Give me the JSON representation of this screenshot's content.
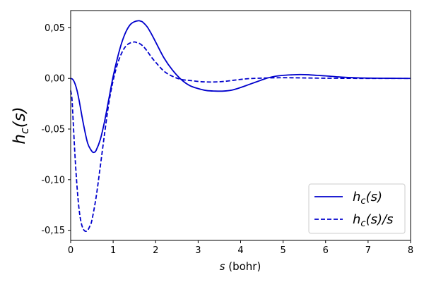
{
  "chart_data": {
    "type": "line",
    "title": "",
    "xlabel": {
      "var": "s",
      "unit": " (bohr)"
    },
    "ylabel": {
      "base": "h",
      "sub": "c",
      "rest": "(s)"
    },
    "xlim": [
      0,
      8
    ],
    "ylim": [
      -0.16,
      0.067
    ],
    "x_ticks": [
      0,
      1,
      2,
      3,
      4,
      5,
      6,
      7,
      8
    ],
    "x_tick_labels": [
      "0",
      "1",
      "2",
      "3",
      "4",
      "5",
      "6",
      "7",
      "8"
    ],
    "y_ticks": [
      0.05,
      0.0,
      -0.05,
      -0.1,
      -0.15
    ],
    "y_tick_labels": [
      "0,05",
      "0,00",
      "-0,05",
      "-0,10",
      "-0,15"
    ],
    "grid": false,
    "legend_position": "lower-right",
    "line_color": "#0000cc",
    "series": [
      {
        "name": {
          "base": "h",
          "sub": "c",
          "rest": "(s)"
        },
        "style": "solid",
        "x": [
          0,
          0.05,
          0.1,
          0.15,
          0.2,
          0.3,
          0.4,
          0.5,
          0.55,
          0.6,
          0.7,
          0.8,
          0.9,
          1.0,
          1.1,
          1.2,
          1.3,
          1.4,
          1.5,
          1.6,
          1.65,
          1.7,
          1.8,
          1.9,
          2.0,
          2.2,
          2.4,
          2.6,
          2.8,
          3.0,
          3.2,
          3.4,
          3.6,
          3.8,
          4.0,
          4.2,
          4.4,
          4.6,
          4.8,
          5.0,
          5.2,
          5.4,
          5.6,
          5.8,
          6.0,
          6.3,
          6.6,
          7.0,
          7.5,
          8.0
        ],
        "y": [
          0.0,
          -0.001,
          -0.005,
          -0.012,
          -0.022,
          -0.045,
          -0.064,
          -0.072,
          -0.073,
          -0.071,
          -0.06,
          -0.042,
          -0.02,
          0.002,
          0.02,
          0.035,
          0.046,
          0.053,
          0.056,
          0.057,
          0.0565,
          0.0555,
          0.051,
          0.044,
          0.036,
          0.02,
          0.008,
          -0.001,
          -0.007,
          -0.01,
          -0.012,
          -0.0125,
          -0.0125,
          -0.0115,
          -0.009,
          -0.006,
          -0.003,
          0.0,
          0.002,
          0.003,
          0.0035,
          0.0038,
          0.0036,
          0.003,
          0.0025,
          0.0015,
          0.0008,
          0.0003,
          0.0001,
          0.0
        ]
      },
      {
        "name": {
          "base": "h",
          "sub": "c",
          "rest": "(s)/s"
        },
        "style": "dashed",
        "x": [
          0,
          0.03,
          0.05,
          0.1,
          0.15,
          0.2,
          0.25,
          0.3,
          0.35,
          0.4,
          0.45,
          0.5,
          0.6,
          0.7,
          0.8,
          0.9,
          1.0,
          1.1,
          1.2,
          1.3,
          1.4,
          1.5,
          1.55,
          1.6,
          1.7,
          1.8,
          1.9,
          2.0,
          2.2,
          2.4,
          2.6,
          2.8,
          3.0,
          3.2,
          3.4,
          3.6,
          3.8,
          4.0,
          4.2,
          4.5,
          4.8,
          5.0,
          5.3,
          5.6,
          6.0,
          6.5,
          7.0,
          8.0
        ],
        "y": [
          -0.012,
          -0.02,
          -0.035,
          -0.075,
          -0.107,
          -0.13,
          -0.143,
          -0.149,
          -0.151,
          -0.15,
          -0.146,
          -0.14,
          -0.117,
          -0.086,
          -0.054,
          -0.024,
          -0.002,
          0.014,
          0.025,
          0.032,
          0.035,
          0.036,
          0.0355,
          0.035,
          0.032,
          0.027,
          0.021,
          0.016,
          0.007,
          0.002,
          -0.001,
          -0.002,
          -0.003,
          -0.0035,
          -0.0035,
          -0.003,
          -0.002,
          -0.001,
          -0.0002,
          0.0003,
          0.0006,
          0.0007,
          0.0006,
          0.0004,
          0.0002,
          0.0001,
          0.0,
          0.0
        ]
      }
    ]
  }
}
